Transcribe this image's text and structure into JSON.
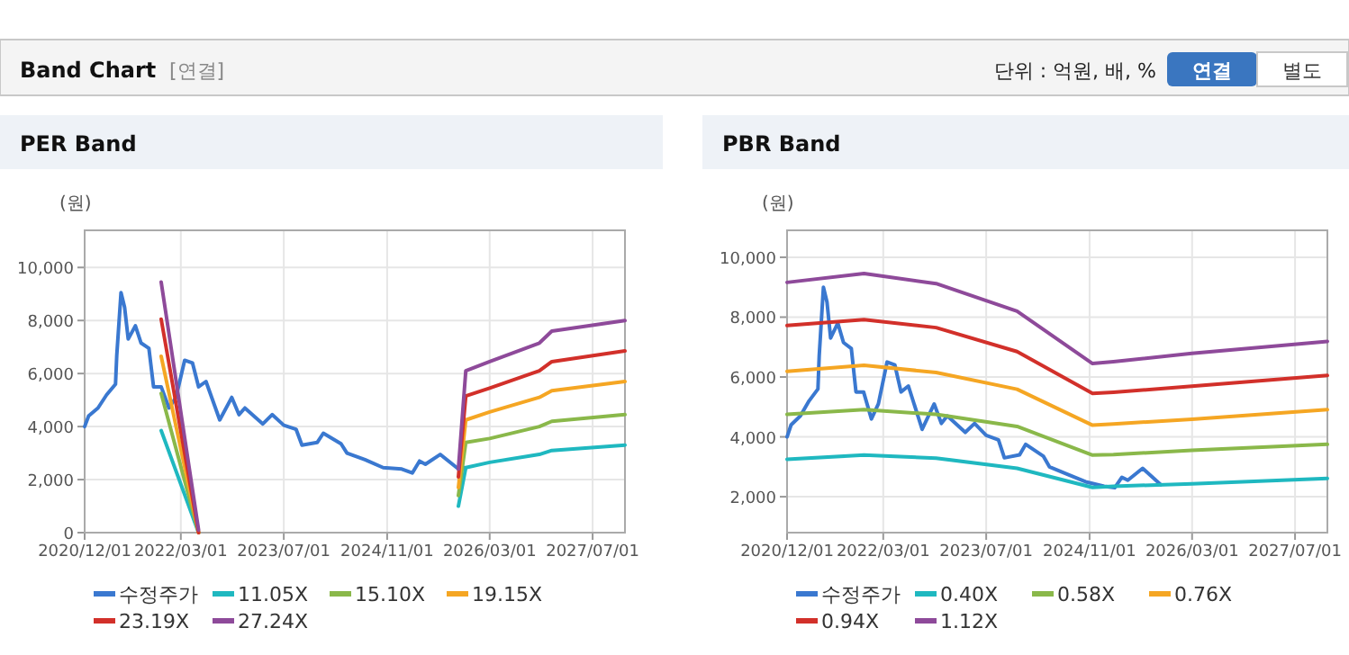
{
  "chart_data": [
    {
      "type": "other",
      "title": "Band Chart",
      "subtitle": "[연결]",
      "annotations": [
        "단위 : 억원, 배, %",
        "연결",
        "별도"
      ]
    },
    {
      "type": "line",
      "title": "PER Band",
      "ylabel": "(원)",
      "xlim": [
        "2020-12-01",
        "2027-12-01"
      ],
      "ylim": [
        0,
        11400
      ],
      "yticks": [
        0,
        {
          "value": 2000,
          "label": "2,000"
        },
        {
          "value": 4000,
          "label": "4,000"
        },
        {
          "value": 6000,
          "label": "6,000"
        },
        {
          "value": 8000,
          "label": "8,000"
        },
        {
          "value": 10000,
          "label": "10,000"
        }
      ],
      "xticks": [
        {
          "value": "2020-12-01",
          "label": "2020/12/01"
        },
        {
          "value": "2022-03-01",
          "label": "2022/03/01"
        },
        {
          "value": "2023-07-01",
          "label": "2023/07/01"
        },
        {
          "value": "2024-11-01",
          "label": "2024/11/01"
        },
        {
          "value": "2026-03-01",
          "label": "2026/03/01"
        },
        {
          "value": "2027-07-01",
          "label": "2027/07/01"
        }
      ],
      "grid": true,
      "legend": "bottom",
      "series": [
        {
          "name": "수정주가",
          "color": "#3a78d0",
          "x": [
            "2020-12-01",
            "2020-12-20",
            "2021-02-02",
            "2021-03-15",
            "2021-04-26",
            "2021-05-02",
            "2021-05-22",
            "2021-06-08",
            "2021-06-25",
            "2021-07-29",
            "2021-08-25",
            "2021-10-01",
            "2021-10-23",
            "2021-11-28",
            "2022-01-04",
            "2022-02-06",
            "2022-03-19",
            "2022-04-25",
            "2022-05-24",
            "2022-06-28",
            "2022-09-01",
            "2022-10-28",
            "2022-12-01",
            "2022-12-29",
            "2023-03-24",
            "2023-05-07",
            "2023-07-01",
            "2023-08-28",
            "2023-09-25",
            "2023-12-06",
            "2024-01-04",
            "2024-03-28",
            "2024-04-25",
            "2024-07-19",
            "2024-10-13",
            "2025-01-09",
            "2025-02-28",
            "2025-04-03",
            "2025-05-01",
            "2025-07-10",
            "2025-10-04",
            "2025-11-03"
          ],
          "values": [
            4000,
            4400,
            4700,
            5200,
            5600,
            6700,
            9050,
            8500,
            7300,
            7800,
            7150,
            6950,
            5500,
            5500,
            4700,
            5100,
            6500,
            6400,
            5500,
            5700,
            4250,
            5100,
            4450,
            4700,
            4100,
            4450,
            4050,
            3900,
            3300,
            3400,
            3750,
            3350,
            3000,
            2750,
            2450,
            2400,
            2250,
            2700,
            2580,
            2950,
            2400,
            2450
          ]
        },
        {
          "name": "11.05X",
          "color": "#1fb8c0",
          "x": [
            "2021-11-28",
            "2022-05-24",
            "2024-01-01",
            "2025-10-04",
            "2025-11-08",
            "2026-03-01",
            "2026-10-22",
            "2026-12-20",
            "2027-12-01"
          ],
          "values": [
            3850,
            0,
            null,
            1000,
            2450,
            2650,
            2950,
            3100,
            3300
          ]
        },
        {
          "name": "15.10X",
          "color": "#8ab84a",
          "x": [
            "2021-11-28",
            "2022-05-24",
            "2024-01-01",
            "2025-10-04",
            "2025-11-08",
            "2026-03-01",
            "2026-10-22",
            "2026-12-20",
            "2027-12-01"
          ],
          "values": [
            5250,
            0,
            null,
            1400,
            3400,
            3550,
            4000,
            4200,
            4450
          ]
        },
        {
          "name": "19.15X",
          "color": "#f5a623",
          "x": [
            "2021-11-28",
            "2022-05-24",
            "2024-01-01",
            "2025-10-04",
            "2025-11-08",
            "2026-03-01",
            "2026-10-22",
            "2026-12-20",
            "2027-12-01"
          ],
          "values": [
            6650,
            0,
            null,
            1700,
            4250,
            4550,
            5100,
            5350,
            5700
          ]
        },
        {
          "name": "23.19X",
          "color": "#d2302a",
          "x": [
            "2021-11-28",
            "2022-05-24",
            "2024-01-01",
            "2025-10-04",
            "2025-11-08",
            "2026-03-01",
            "2026-10-22",
            "2026-12-20",
            "2027-12-01"
          ],
          "values": [
            8050,
            0,
            null,
            2100,
            5150,
            5450,
            6100,
            6450,
            6850
          ]
        },
        {
          "name": "27.24X",
          "color": "#8e4a9a",
          "x": [
            "2021-11-28",
            "2022-05-24",
            "2024-01-01",
            "2025-10-04",
            "2025-11-08",
            "2026-03-01",
            "2026-10-22",
            "2026-12-20",
            "2027-12-01"
          ],
          "values": [
            9450,
            100,
            null,
            2400,
            6100,
            6450,
            7150,
            7600,
            8000
          ]
        }
      ]
    },
    {
      "type": "line",
      "title": "PBR Band",
      "ylabel": "(원)",
      "xlim": [
        "2020-12-01",
        "2027-12-01"
      ],
      "ylim": [
        800,
        10900
      ],
      "yticks": [
        {
          "value": 2000,
          "label": "2,000"
        },
        {
          "value": 4000,
          "label": "4,000"
        },
        {
          "value": 6000,
          "label": "6,000"
        },
        {
          "value": 8000,
          "label": "8,000"
        },
        {
          "value": 10000,
          "label": "10,000"
        }
      ],
      "xticks": [
        {
          "value": "2020-12-01",
          "label": "2020/12/01"
        },
        {
          "value": "2022-03-01",
          "label": "2022/03/01"
        },
        {
          "value": "2023-07-01",
          "label": "2023/07/01"
        },
        {
          "value": "2024-11-01",
          "label": "2024/11/01"
        },
        {
          "value": "2026-03-01",
          "label": "2026/03/01"
        },
        {
          "value": "2027-07-01",
          "label": "2027/07/01"
        }
      ],
      "grid": true,
      "legend": "bottom",
      "series": [
        {
          "name": "수정주가",
          "color": "#3a78d0",
          "x": [
            "2020-12-01",
            "2020-12-20",
            "2021-02-02",
            "2021-03-15",
            "2021-04-26",
            "2021-05-02",
            "2021-05-22",
            "2021-06-08",
            "2021-06-25",
            "2021-07-29",
            "2021-08-25",
            "2021-10-01",
            "2021-10-23",
            "2021-11-28",
            "2022-01-04",
            "2022-02-06",
            "2022-03-19",
            "2022-04-25",
            "2022-05-24",
            "2022-06-28",
            "2022-09-01",
            "2022-10-28",
            "2022-12-01",
            "2022-12-29",
            "2023-03-24",
            "2023-05-07",
            "2023-07-01",
            "2023-08-28",
            "2023-09-25",
            "2023-12-06",
            "2024-01-04",
            "2024-03-28",
            "2024-04-25",
            "2024-07-19",
            "2024-10-13",
            "2025-01-09",
            "2025-02-28",
            "2025-04-03",
            "2025-05-01",
            "2025-07-10",
            "2025-10-04"
          ],
          "values": [
            4000,
            4400,
            4700,
            5200,
            5600,
            6700,
            9000,
            8500,
            7300,
            7800,
            7150,
            6950,
            5500,
            5500,
            4600,
            5100,
            6500,
            6400,
            5500,
            5700,
            4250,
            5100,
            4450,
            4700,
            4150,
            4450,
            4050,
            3900,
            3300,
            3400,
            3750,
            3350,
            3000,
            2750,
            2500,
            2350,
            2300,
            2650,
            2550,
            2950,
            2400
          ]
        },
        {
          "name": "0.40X",
          "color": "#1fb8c0",
          "x": [
            "2020-12-01",
            "2021-11-30",
            "2022-11-06",
            "2023-11-24",
            "2024-11-15",
            "2025-02-22",
            "2026-02-28",
            "2027-12-01"
          ],
          "values": [
            3250,
            3390,
            3290,
            2950,
            2310,
            2350,
            2430,
            2610
          ]
        },
        {
          "name": "0.58X",
          "color": "#8ab84a",
          "x": [
            "2020-12-01",
            "2021-11-30",
            "2022-11-06",
            "2023-11-24",
            "2024-11-15",
            "2025-02-22",
            "2026-02-28",
            "2027-12-01"
          ],
          "values": [
            4750,
            4910,
            4750,
            4350,
            3390,
            3410,
            3550,
            3750
          ]
        },
        {
          "name": "0.76X",
          "color": "#f5a623",
          "x": [
            "2020-12-01",
            "2021-11-30",
            "2022-11-06",
            "2023-11-24",
            "2024-11-15",
            "2025-02-22",
            "2026-02-28",
            "2027-12-01"
          ],
          "values": [
            6190,
            6390,
            6150,
            5590,
            4390,
            4430,
            4590,
            4910
          ]
        },
        {
          "name": "0.94X",
          "color": "#d2302a",
          "x": [
            "2020-12-01",
            "2021-11-30",
            "2022-11-06",
            "2023-11-24",
            "2024-11-15",
            "2025-02-22",
            "2026-02-28",
            "2027-12-01"
          ],
          "values": [
            7720,
            7920,
            7650,
            6850,
            5450,
            5490,
            5690,
            6050
          ]
        },
        {
          "name": "1.12X",
          "color": "#8e4a9a",
          "x": [
            "2020-12-01",
            "2021-11-30",
            "2022-11-06",
            "2023-11-24",
            "2024-11-15",
            "2025-02-22",
            "2026-02-28",
            "2027-12-01"
          ],
          "values": [
            9160,
            9460,
            9120,
            8200,
            6450,
            6510,
            6790,
            7190
          ]
        }
      ]
    }
  ]
}
